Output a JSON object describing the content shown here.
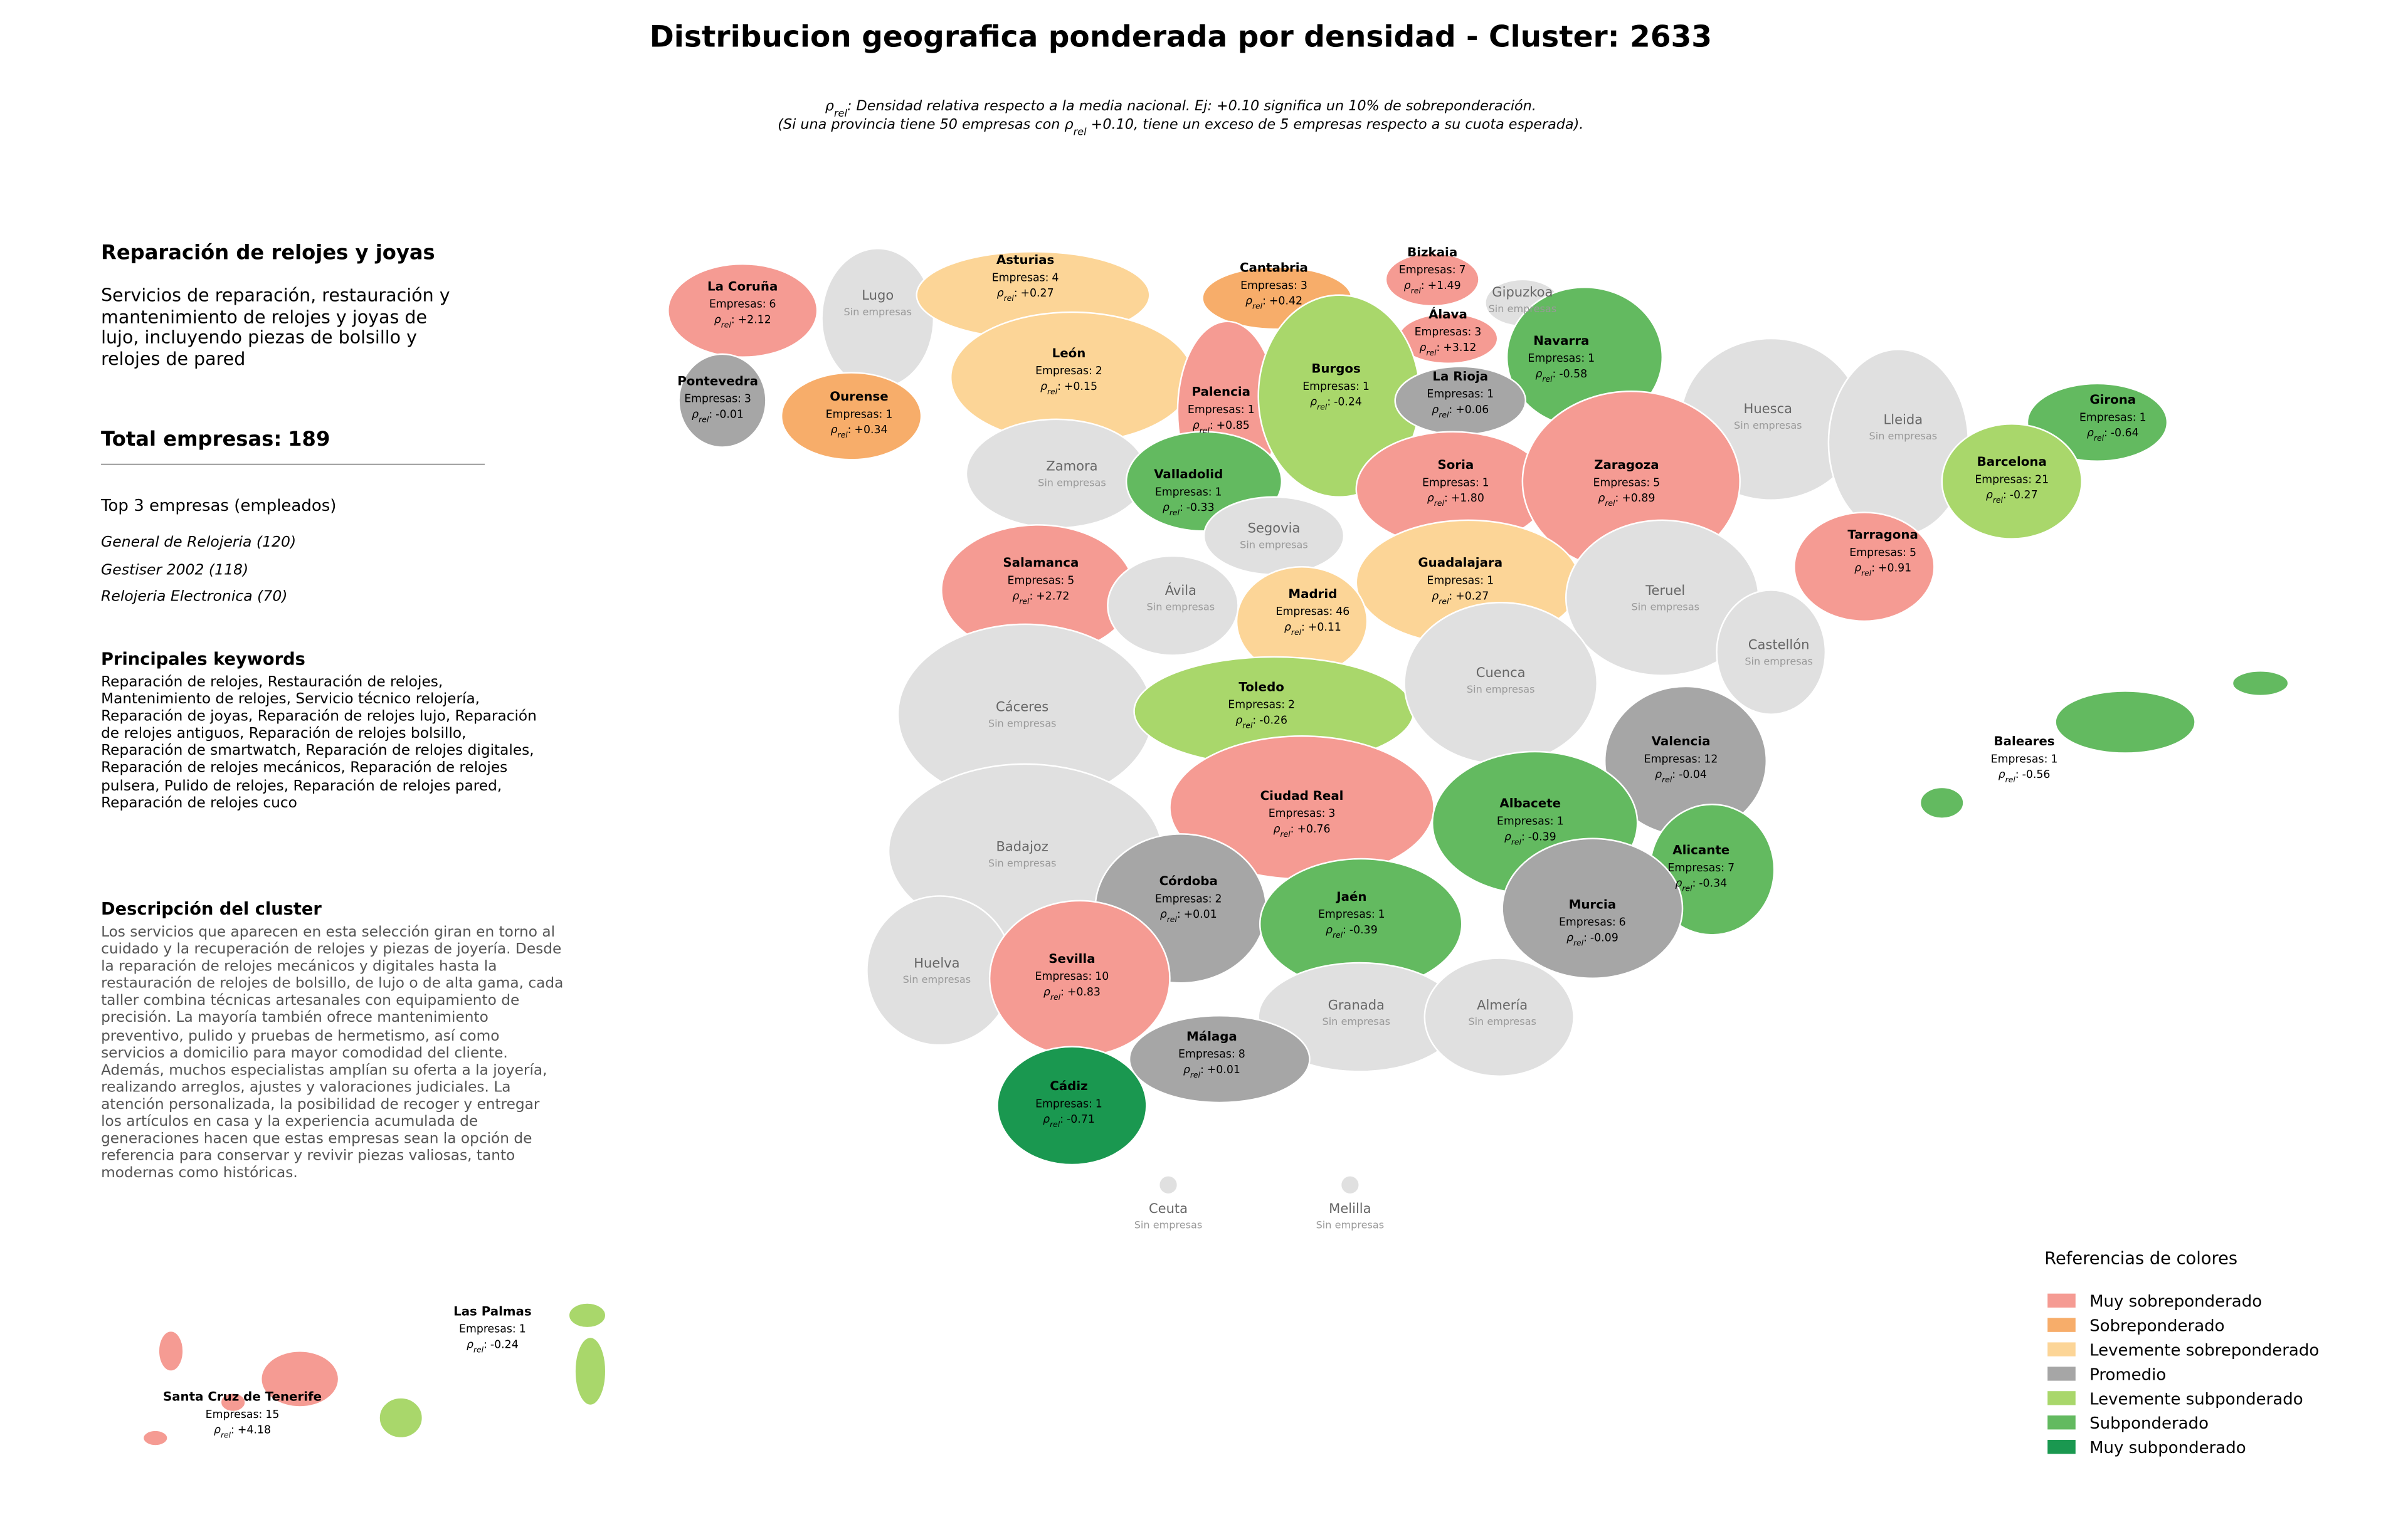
{
  "title": "Distribucion geografica ponderada por densidad - Cluster: 2633",
  "subtitle": [
    [
      {
        "text": "ρ"
      },
      {
        "sub": "rel"
      },
      {
        "text": ": Densidad relativa respecto a la media nacional. Ej: +0.10 significa un 10% de sobreponderación."
      }
    ],
    [
      {
        "text": "(Si una provincia tiene 50 empresas con "
      },
      {
        "text": "ρ"
      },
      {
        "sub": "rel"
      },
      {
        "text": " +0.10, tiene un exceso de 5 empresas respecto a su cuota esperada)."
      }
    ]
  ],
  "sidebar": {
    "title": "Reparación de relojes y joyas",
    "description": "Servicios de reparación, restauración y mantenimiento de relojes y joyas de lujo, incluyendo piezas de bolsillo y relojes de pared",
    "total_label": "Total empresas:",
    "total": 189,
    "top_heading": "Top 3 empresas (empleados)",
    "top": [
      "General de Relojeria (120)",
      "Gestiser 2002 (118)",
      "Relojeria Electronica (70)"
    ],
    "keywords_heading": "Principales keywords",
    "keywords": "Reparación de relojes, Restauración de relojes, Mantenimiento de relojes, Servicio técnico relojería, Reparación de joyas, Reparación de relojes lujo, Reparación de relojes antiguos, Reparación de relojes bolsillo, Reparación de smartwatch, Reparación de relojes digitales, Reparación de relojes mecánicos, Reparación de relojes pulsera, Pulido de relojes, Reparación de relojes pared, Reparación de relojes cuco",
    "cluster_heading": "Descripción del cluster",
    "cluster_text": "Los servicios que aparecen en esta selección giran en torno al cuidado y la recuperación de relojes y piezas de joyería. Desde la reparación de relojes mecánicos y digitales hasta la restauración de relojes de bolsillo, de lujo o de alta gama, cada taller combina técnicas artesanales con equipamiento de precisión. La mayoría también ofrece mantenimiento preventivo, pulido y pruebas de hermetismo, así como servicios a domicilio para mayor comodidad del cliente. Además, muchos especialistas amplían su oferta a la joyería, realizando arreglos, ajustes y valoraciones judiciales. La atención personalizada, la posibilidad de recoger y entregar los artículos en casa y la experiencia acumulada de generaciones hacen que estas empresas sean la opción de referencia para conservar y revivir piezas valiosas, tanto modernas como históricas."
  },
  "labels": {
    "companies": "Empresas:",
    "rho": "ρ",
    "rho_sub": "rel",
    "colon": ":",
    "no_companies": "Sin empresas"
  },
  "provinces": [
    {
      "name": "La Coruña",
      "companies": 6,
      "rho": 2.12,
      "rho_label": "+2.12",
      "color": "#f59b93"
    },
    {
      "name": "Lugo",
      "color": "#e0e0e0"
    },
    {
      "name": "Asturias",
      "companies": 4,
      "rho": 0.27,
      "rho_label": "+0.27",
      "color": "#fcd597"
    },
    {
      "name": "Cantabria",
      "companies": 3,
      "rho": 0.42,
      "rho_label": "+0.42",
      "color": "#f7ad6a"
    },
    {
      "name": "Bizkaia",
      "companies": 7,
      "rho": 1.49,
      "rho_label": "+1.49",
      "color": "#f59b93"
    },
    {
      "name": "Gipuzkoa",
      "color": "#e0e0e0"
    },
    {
      "name": "Álava",
      "companies": 3,
      "rho": 3.12,
      "rho_label": "+3.12",
      "color": "#f59b93"
    },
    {
      "name": "Navarra",
      "companies": 1,
      "rho": -0.58,
      "color": "#63ba60"
    },
    {
      "name": "Pontevedra",
      "companies": 3,
      "rho": -0.01,
      "color": "#a6a6a6"
    },
    {
      "name": "Ourense",
      "companies": 1,
      "rho": 0.34,
      "rho_label": "+0.34",
      "color": "#f7ad6a"
    },
    {
      "name": "León",
      "companies": 2,
      "rho": 0.15,
      "rho_label": "+0.15",
      "color": "#fcd597"
    },
    {
      "name": "Palencia",
      "companies": 1,
      "rho": 0.85,
      "rho_label": "+0.85",
      "color": "#f59b93"
    },
    {
      "name": "Burgos",
      "companies": 1,
      "rho": -0.24,
      "color": "#a9d76b"
    },
    {
      "name": "La Rioja",
      "companies": 1,
      "rho": 0.06,
      "rho_label": "+0.06",
      "color": "#a6a6a6"
    },
    {
      "name": "Huesca",
      "color": "#e0e0e0"
    },
    {
      "name": "Lleida",
      "color": "#e0e0e0"
    },
    {
      "name": "Girona",
      "companies": 1,
      "rho": -0.64,
      "color": "#63ba60"
    },
    {
      "name": "Zamora",
      "color": "#e0e0e0"
    },
    {
      "name": "Valladolid",
      "companies": 1,
      "rho": -0.33,
      "color": "#63ba60"
    },
    {
      "name": "Soria",
      "companies": 1,
      "rho": 1.8,
      "rho_label": "+1.80",
      "color": "#f59b93"
    },
    {
      "name": "Zaragoza",
      "companies": 5,
      "rho": 0.89,
      "rho_label": "+0.89",
      "color": "#f59b93"
    },
    {
      "name": "Barcelona",
      "companies": 21,
      "rho": -0.27,
      "color": "#a9d76b"
    },
    {
      "name": "Tarragona",
      "companies": 5,
      "rho": 0.91,
      "rho_label": "+0.91",
      "color": "#f59b93"
    },
    {
      "name": "Salamanca",
      "companies": 5,
      "rho": 2.72,
      "rho_label": "+2.72",
      "color": "#f59b93"
    },
    {
      "name": "Segovia",
      "color": "#e0e0e0"
    },
    {
      "name": "Ávila",
      "color": "#e0e0e0"
    },
    {
      "name": "Guadalajara",
      "companies": 1,
      "rho": 0.27,
      "rho_label": "+0.27",
      "color": "#fcd597"
    },
    {
      "name": "Madrid",
      "companies": 46,
      "rho": 0.11,
      "rho_label": "+0.11",
      "color": "#fcd597"
    },
    {
      "name": "Teruel",
      "color": "#e0e0e0"
    },
    {
      "name": "Castellón",
      "color": "#e0e0e0"
    },
    {
      "name": "Cáceres",
      "color": "#e0e0e0"
    },
    {
      "name": "Toledo",
      "companies": 2,
      "rho": -0.26,
      "color": "#a9d76b"
    },
    {
      "name": "Cuenca",
      "color": "#e0e0e0"
    },
    {
      "name": "Valencia",
      "companies": 12,
      "rho": -0.04,
      "color": "#a6a6a6"
    },
    {
      "name": "Baleares",
      "companies": 1,
      "rho": -0.56,
      "color": "#63ba60"
    },
    {
      "name": "Badajoz",
      "color": "#e0e0e0"
    },
    {
      "name": "Ciudad Real",
      "companies": 3,
      "rho": 0.76,
      "rho_label": "+0.76",
      "color": "#f59b93"
    },
    {
      "name": "Albacete",
      "companies": 1,
      "rho": -0.39,
      "color": "#63ba60"
    },
    {
      "name": "Alicante",
      "companies": 7,
      "rho": -0.34,
      "color": "#63ba60"
    },
    {
      "name": "Córdoba",
      "companies": 2,
      "rho": 0.01,
      "rho_label": "+0.01",
      "color": "#a6a6a6"
    },
    {
      "name": "Jaén",
      "companies": 1,
      "rho": -0.39,
      "color": "#63ba60"
    },
    {
      "name": "Murcia",
      "companies": 6,
      "rho": -0.09,
      "color": "#a6a6a6"
    },
    {
      "name": "Huelva",
      "color": "#e0e0e0"
    },
    {
      "name": "Sevilla",
      "companies": 10,
      "rho": 0.83,
      "rho_label": "+0.83",
      "color": "#f59b93"
    },
    {
      "name": "Granada",
      "color": "#e0e0e0"
    },
    {
      "name": "Almería",
      "color": "#e0e0e0"
    },
    {
      "name": "Málaga",
      "companies": 8,
      "rho": 0.01,
      "rho_label": "+0.01",
      "color": "#a6a6a6"
    },
    {
      "name": "Cádiz",
      "companies": 1,
      "rho": -0.71,
      "color": "#1a9850"
    },
    {
      "name": "Ceuta",
      "color": "#e0e0e0"
    },
    {
      "name": "Melilla",
      "color": "#e0e0e0"
    },
    {
      "name": "Las Palmas",
      "companies": 1,
      "rho": -0.24,
      "color": "#a9d76b"
    },
    {
      "name": "Santa Cruz de Tenerife",
      "companies": 15,
      "rho": 4.18,
      "rho_label": "+4.18",
      "color": "#f59b93"
    }
  ],
  "legend": {
    "title": "Referencias de colores",
    "items": [
      {
        "name": "Muy sobreponderado",
        "color": "#f59b93"
      },
      {
        "name": "Sobreponderado",
        "color": "#f7ad6a"
      },
      {
        "name": "Levemente sobreponderado",
        "color": "#fcd597"
      },
      {
        "name": "Promedio",
        "color": "#a6a6a6"
      },
      {
        "name": "Levemente subponderado",
        "color": "#a9d76b"
      },
      {
        "name": "Subponderado",
        "color": "#63ba60"
      },
      {
        "name": "Muy subponderado",
        "color": "#1a9850"
      }
    ]
  }
}
